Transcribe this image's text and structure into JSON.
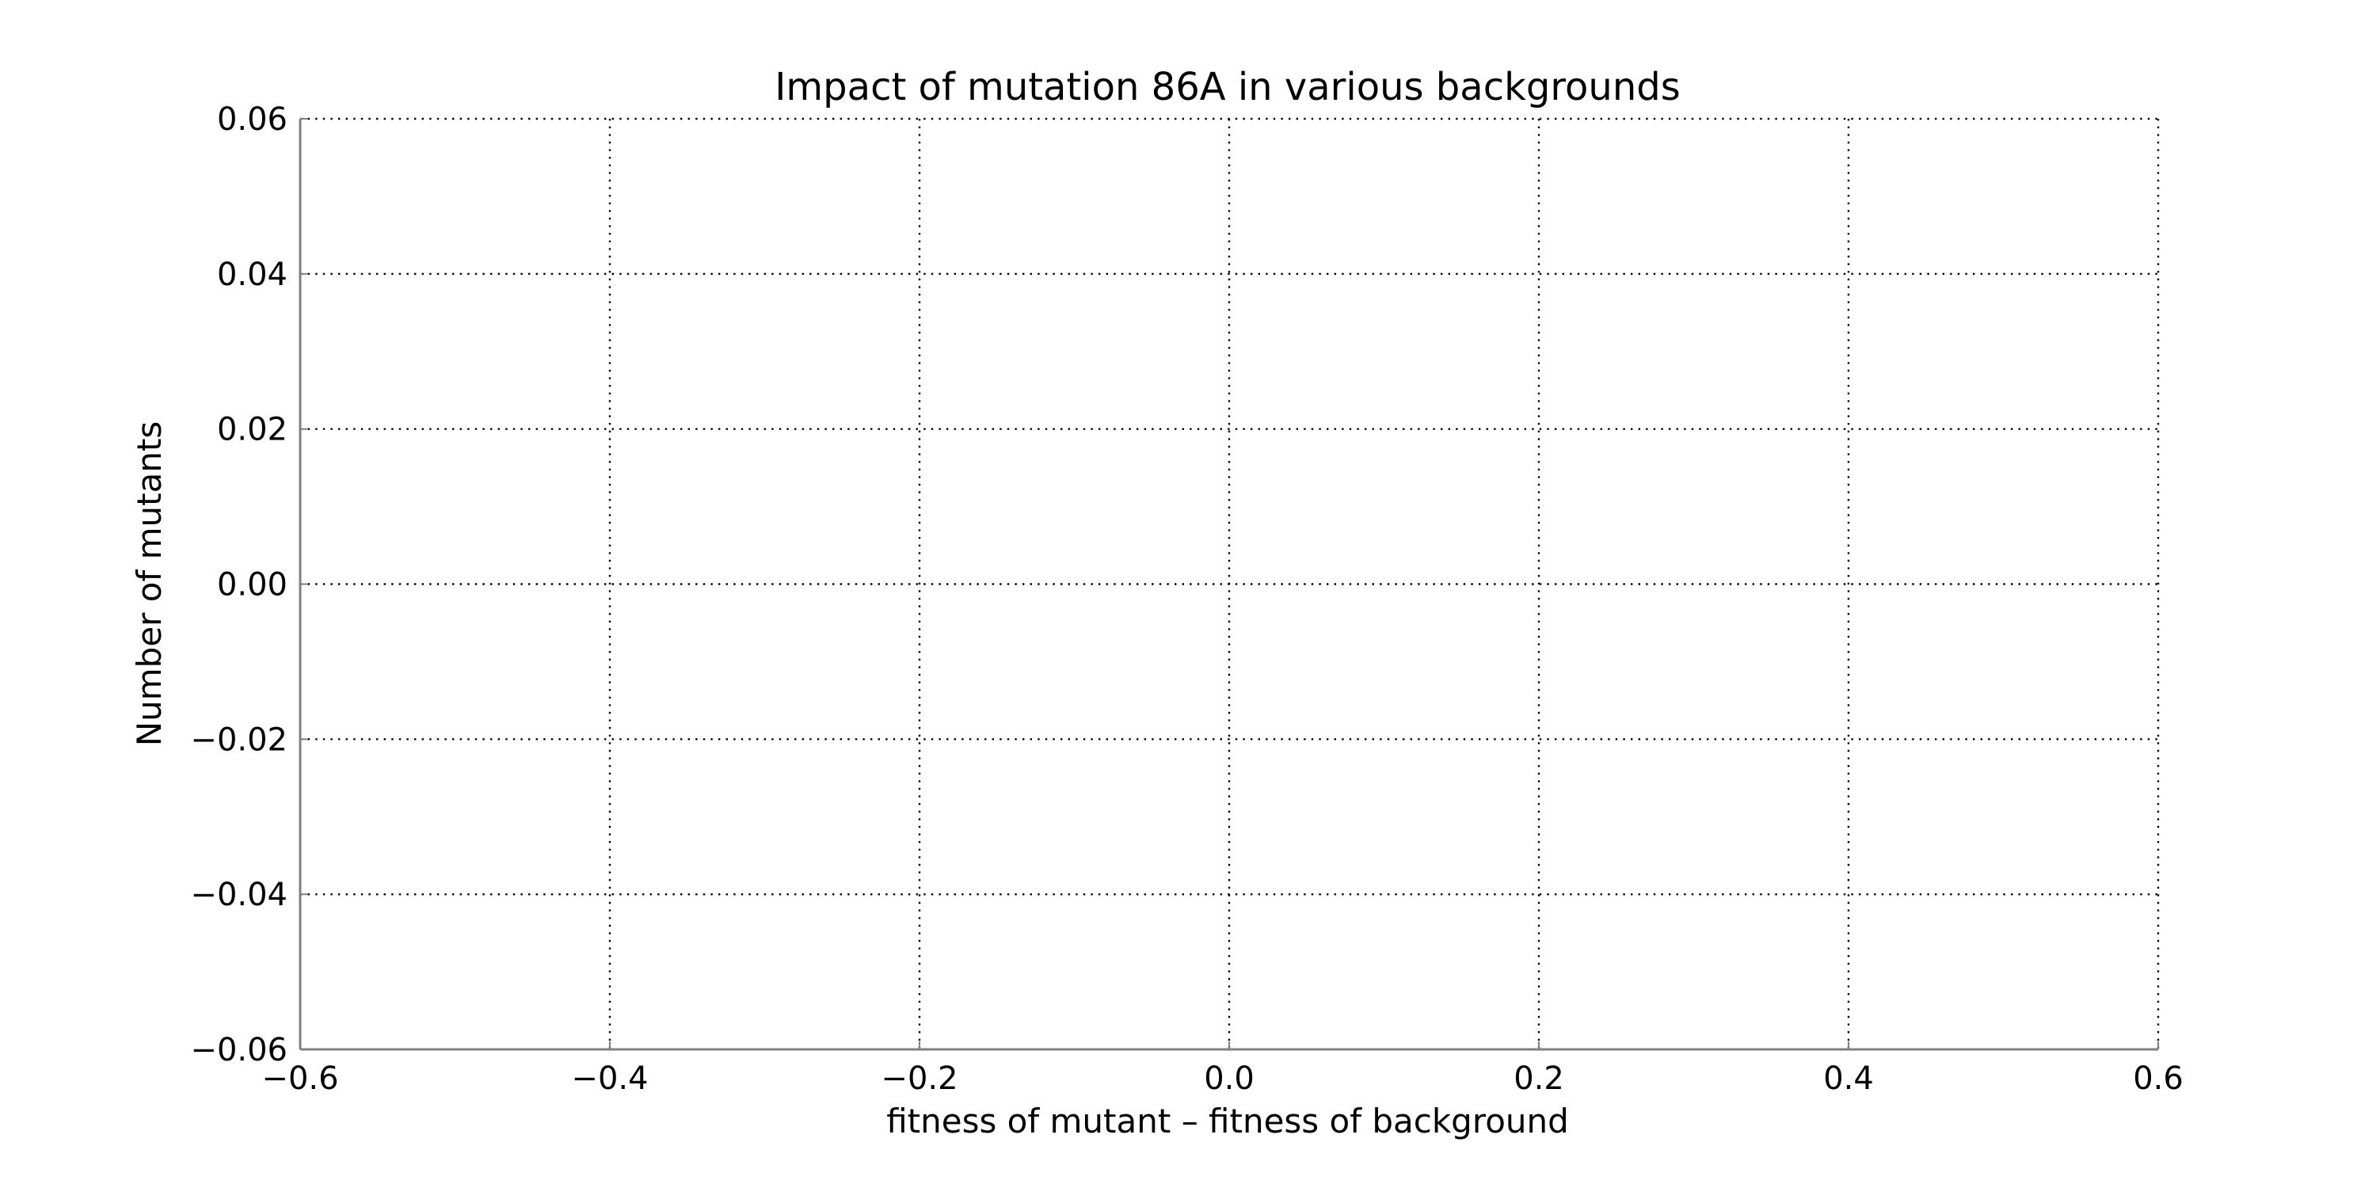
{
  "chart_data": {
    "type": "bar",
    "title": "Impact of mutation 86A in various backgrounds",
    "xlabel": "fitness of mutant  –  fitness of background",
    "ylabel": "Number of mutants",
    "xlim": [
      -0.6,
      0.6
    ],
    "ylim": [
      -0.06,
      0.06
    ],
    "xticks": [
      -0.6,
      -0.4,
      -0.2,
      0.0,
      0.2,
      0.4,
      0.6
    ],
    "yticks": [
      -0.06,
      -0.04,
      -0.02,
      0.0,
      0.02,
      0.04,
      0.06
    ],
    "xtick_labels": [
      "−0.6",
      "−0.4",
      "−0.2",
      "0.0",
      "0.2",
      "0.4",
      "0.6"
    ],
    "ytick_labels": [
      "−0.06",
      "−0.04",
      "−0.02",
      "0.00",
      "0.02",
      "0.04",
      "0.06"
    ],
    "series": [],
    "grid": true,
    "grid_style": "dotted",
    "legend": "none",
    "colors": {
      "axis": "#808080",
      "grid": "#000000",
      "text": "#000000",
      "background": "#ffffff"
    }
  }
}
